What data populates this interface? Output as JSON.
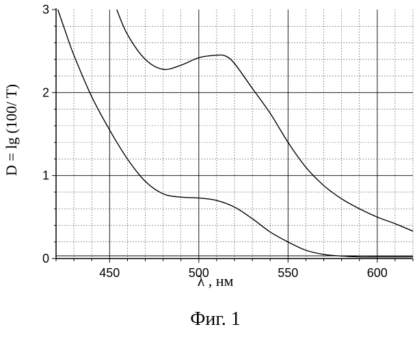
{
  "chart_data": {
    "type": "line",
    "title": "",
    "xlabel": "λ , нм",
    "ylabel": "D = lg (100/ T)",
    "caption": "Фиг. 1",
    "xlim": [
      420,
      620
    ],
    "ylim": [
      0,
      3
    ],
    "x_ticks": [
      450,
      500,
      550,
      600
    ],
    "y_ticks": [
      0,
      1,
      2,
      3
    ],
    "grid": true,
    "series": [
      {
        "x": [
          454,
          460,
          470,
          480,
          490,
          500,
          510,
          515,
          520,
          530,
          540,
          550,
          560,
          570,
          580,
          590,
          600,
          610,
          620
        ],
        "values": [
          3.0,
          2.7,
          2.4,
          2.28,
          2.33,
          2.42,
          2.45,
          2.44,
          2.35,
          2.05,
          1.75,
          1.4,
          1.1,
          0.88,
          0.72,
          0.6,
          0.5,
          0.42,
          0.33
        ]
      },
      {
        "x": [
          421,
          425,
          430,
          440,
          450,
          460,
          470,
          480,
          490,
          500,
          510,
          520,
          530,
          540,
          550,
          560,
          570,
          580,
          590,
          600,
          610,
          620
        ],
        "values": [
          3.0,
          2.75,
          2.45,
          1.95,
          1.55,
          1.2,
          0.93,
          0.78,
          0.74,
          0.73,
          0.7,
          0.62,
          0.48,
          0.32,
          0.2,
          0.1,
          0.05,
          0.03,
          0.02,
          0.02,
          0.02,
          0.02
        ]
      }
    ]
  }
}
